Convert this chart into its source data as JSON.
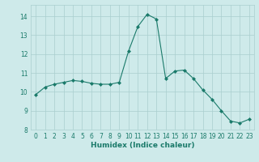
{
  "x": [
    0,
    1,
    2,
    3,
    4,
    5,
    6,
    7,
    8,
    9,
    10,
    11,
    12,
    13,
    14,
    15,
    16,
    17,
    18,
    19,
    20,
    21,
    22,
    23
  ],
  "y": [
    9.85,
    10.25,
    10.4,
    10.5,
    10.6,
    10.55,
    10.45,
    10.4,
    10.4,
    10.5,
    12.15,
    13.45,
    14.1,
    13.85,
    10.7,
    11.1,
    11.15,
    10.7,
    10.1,
    9.6,
    9.0,
    8.45,
    8.35,
    8.55
  ],
  "xlabel": "Humidex (Indice chaleur)",
  "ylim": [
    8.0,
    14.6
  ],
  "yticks": [
    8,
    9,
    10,
    11,
    12,
    13,
    14
  ],
  "xticks": [
    0,
    1,
    2,
    3,
    4,
    5,
    6,
    7,
    8,
    9,
    10,
    11,
    12,
    13,
    14,
    15,
    16,
    17,
    18,
    19,
    20,
    21,
    22,
    23
  ],
  "line_color": "#1a7a6a",
  "marker": "D",
  "marker_size": 2.0,
  "bg_color": "#ceeaea",
  "grid_color": "#aacece",
  "text_color": "#1a7a6a",
  "tick_fontsize": 5.5,
  "xlabel_fontsize": 6.5
}
